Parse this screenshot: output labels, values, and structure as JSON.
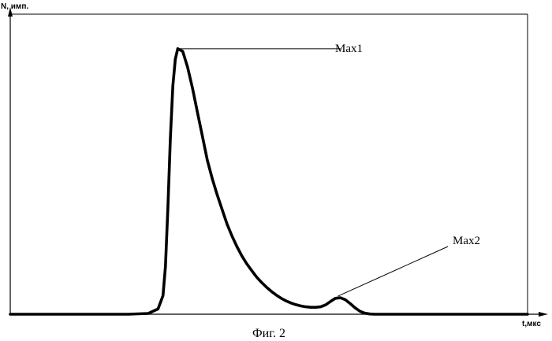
{
  "chart_data": {
    "type": "line",
    "ylabel": "N, имп.",
    "xlabel": "t,мкс",
    "caption": "Фиг. 2",
    "grid": false,
    "series": [
      {
        "x": [
          0,
          48,
          56,
          60,
          62,
          63,
          64,
          65,
          66,
          67,
          68,
          70,
          72,
          74,
          76,
          78,
          80,
          82,
          84,
          86,
          88,
          90,
          92,
          94,
          96,
          98,
          100,
          102,
          104,
          106,
          108,
          110,
          112,
          114,
          116,
          118,
          120,
          122,
          124,
          126,
          128,
          130,
          132,
          134,
          136,
          138,
          140,
          142,
          144,
          146,
          148,
          150,
          152,
          154,
          156,
          158,
          160,
          162,
          164,
          166,
          168,
          170,
          172,
          174,
          176,
          180,
          190,
          210
        ],
        "y": [
          0,
          0,
          0.3,
          2,
          7,
          18,
          40,
          66,
          86,
          96,
          100,
          99,
          93,
          85,
          76,
          67,
          58,
          51,
          45,
          39.5,
          34,
          29.5,
          25.5,
          22,
          19,
          16.5,
          14,
          12,
          10.2,
          8.6,
          7.2,
          6,
          5,
          4.2,
          3.6,
          3.1,
          2.8,
          2.6,
          2.6,
          2.8,
          3.5,
          4.8,
          6,
          6.2,
          5.5,
          4,
          2.4,
          1.1,
          0.4,
          0.1,
          0,
          0,
          0,
          0,
          0,
          0,
          0,
          0,
          0,
          0,
          0,
          0,
          0,
          0,
          0,
          0,
          0,
          0
        ]
      }
    ],
    "xlim": [
      0,
      210
    ],
    "ylim": [
      0,
      113
    ],
    "annotations": [
      {
        "label": "Max1",
        "x": 68,
        "y": 100
      },
      {
        "label": "Max2",
        "x": 133,
        "y": 6.2
      }
    ]
  }
}
